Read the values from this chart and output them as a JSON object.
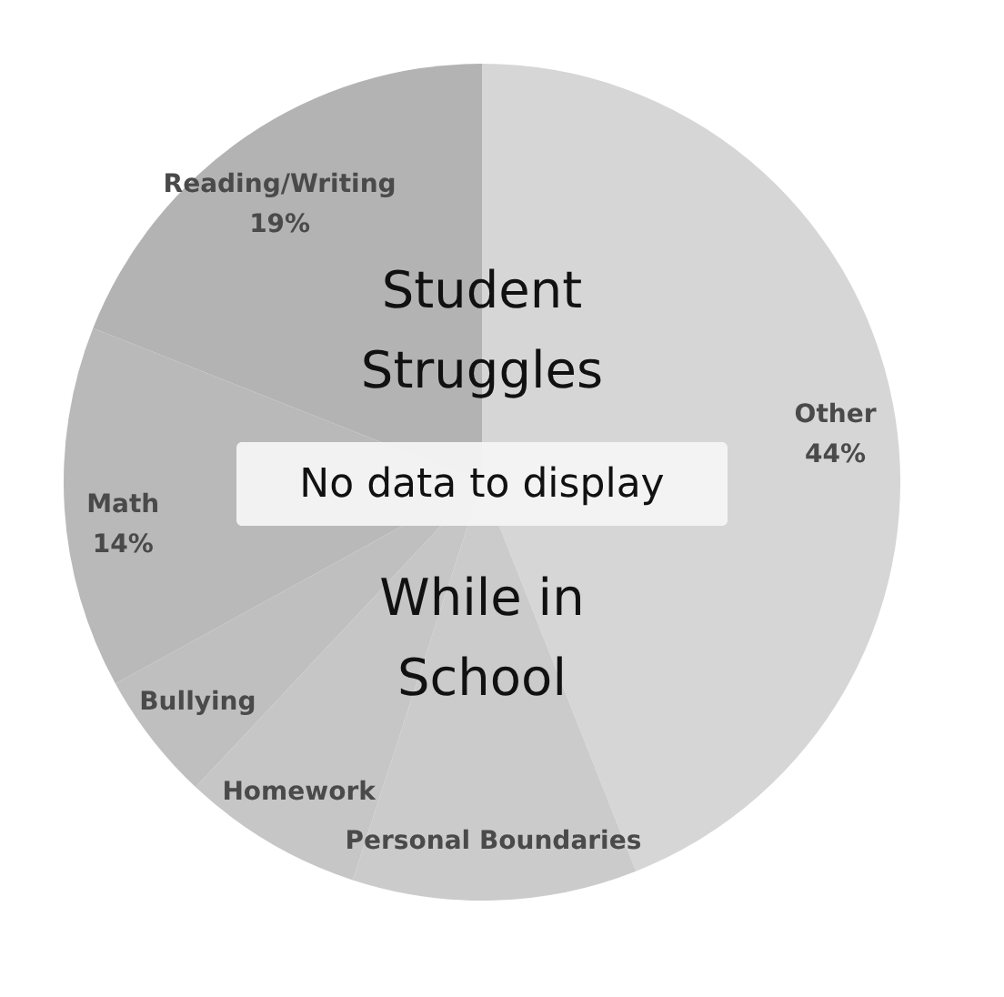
{
  "chart_data": {
    "type": "pie",
    "title": "Student Struggles While in School",
    "categories": [
      "Other",
      "Personal Boundaries",
      "Homework",
      "Bullying",
      "Math",
      "Reading/Writing"
    ],
    "values": [
      44,
      11,
      7,
      5,
      14,
      19
    ],
    "value_labels": [
      "44%",
      null,
      null,
      null,
      "14%",
      "19%"
    ],
    "colors": [
      "#d6d6d6",
      "#cbcbcb",
      "#c6c6c6",
      "#bfbfbf",
      "#b9b9b9",
      "#b3b3b3"
    ],
    "annotations": [
      "No data to display"
    ],
    "legend": false
  }
}
